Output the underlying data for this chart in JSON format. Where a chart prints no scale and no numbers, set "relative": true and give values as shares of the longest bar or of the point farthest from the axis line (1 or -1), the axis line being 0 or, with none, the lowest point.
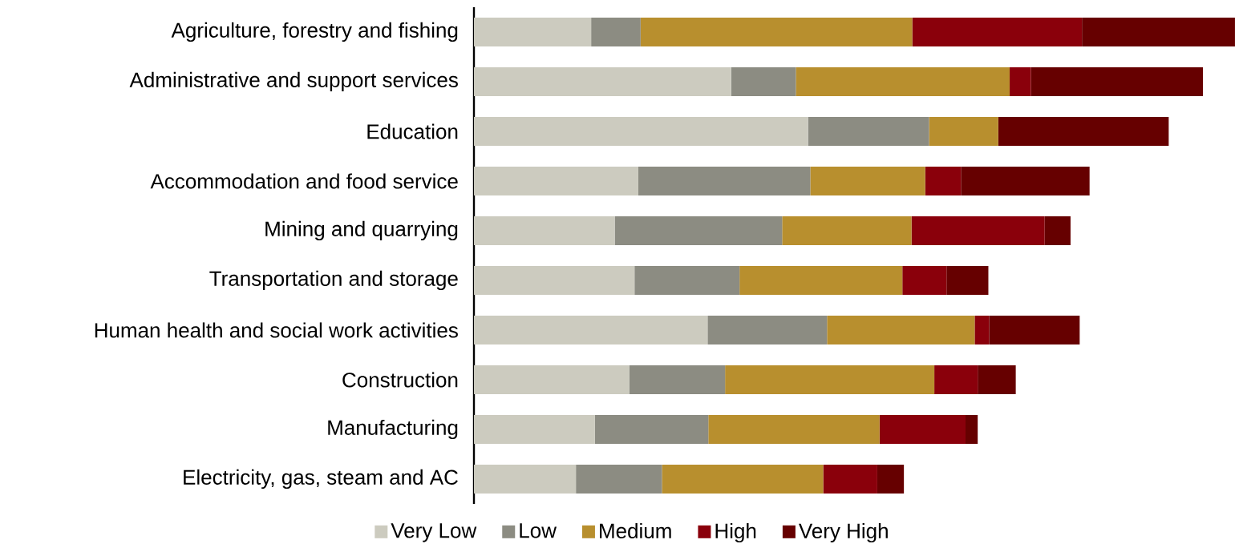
{
  "chart_data": {
    "type": "bar",
    "orientation": "horizontal",
    "stacked": true,
    "relative": true,
    "legend": "bottom",
    "categories": [
      "Agriculture, forestry and fishing",
      "Administrative and support services",
      "Education",
      "Accommodation and food service",
      "Mining and quarrying",
      "Transportation and storage",
      "Human health and social work activities",
      "Construction",
      "Manufacturing",
      "Electricity, gas, steam and AC"
    ],
    "series": [
      {
        "name": "Very Low",
        "color": "#cccbbf",
        "values": [
          0.154,
          0.338,
          0.439,
          0.216,
          0.185,
          0.211,
          0.307,
          0.204,
          0.159,
          0.134
        ]
      },
      {
        "name": "Low",
        "color": "#8c8c82",
        "values": [
          0.065,
          0.085,
          0.159,
          0.226,
          0.22,
          0.138,
          0.157,
          0.126,
          0.149,
          0.113
        ]
      },
      {
        "name": "Medium",
        "color": "#b88f2e",
        "values": [
          0.357,
          0.281,
          0.091,
          0.151,
          0.17,
          0.214,
          0.194,
          0.275,
          0.225,
          0.212
        ]
      },
      {
        "name": "High",
        "color": "#8a000b",
        "values": [
          0.223,
          0.028,
          0,
          0.047,
          0.175,
          0.058,
          0.019,
          0.057,
          0.113,
          0.071
        ]
      },
      {
        "name": "Very High",
        "color": "#660000",
        "values": [
          0.201,
          0.226,
          0.224,
          0.169,
          0.034,
          0.055,
          0.119,
          0.05,
          0.016,
          0.035
        ]
      }
    ]
  }
}
